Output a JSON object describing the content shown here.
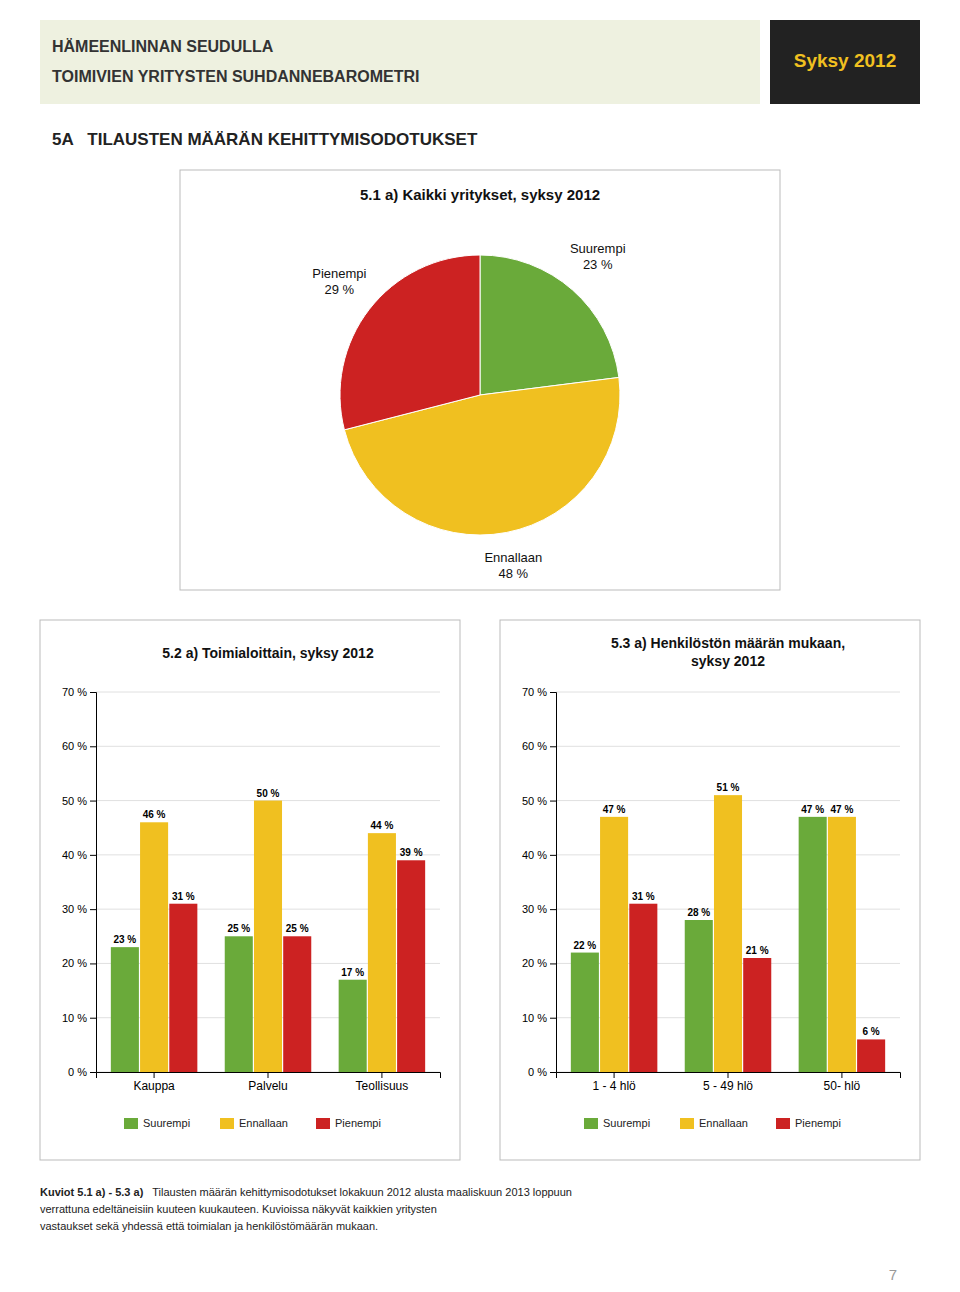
{
  "header": {
    "lines": [
      "HÄMEENLINNAN SEUDULLA",
      "TOIMIVIEN YRITYSTEN SUHDANNEBAROMETRI"
    ],
    "badge": "Syksy 2012"
  },
  "title": "5A   TILAUSTEN MÄÄRÄN KEHITTYMISODOTUKSET",
  "chart_data": [
    {
      "type": "pie",
      "title": "5.1 a) Kaikki yritykset, syksy 2012",
      "categories": [
        "Suurempi",
        "Ennallaan",
        "Pienempi"
      ],
      "values": [
        23,
        48,
        29
      ],
      "value_labels": [
        "23 %",
        "48 %",
        "29 %"
      ],
      "colors": [
        "#6aaa3a",
        "#f0c020",
        "#cc2222"
      ],
      "data_labels": true
    },
    {
      "type": "bar",
      "title": "5.2 a) Toimialoittain, syksy 2012",
      "categories": [
        "Kauppa",
        "Palvelu",
        "Teollisuus"
      ],
      "series": [
        {
          "name": "Suurempi",
          "color": "#6aaa3a",
          "values": [
            23,
            25,
            17
          ],
          "value_labels": [
            "23 %",
            "25 %",
            "17 %"
          ]
        },
        {
          "name": "Ennallaan",
          "color": "#f0c020",
          "values": [
            46,
            50,
            44
          ],
          "value_labels": [
            "46 %",
            "50 %",
            "44 %"
          ]
        },
        {
          "name": "Pienempi",
          "color": "#cc2222",
          "values": [
            31,
            25,
            39
          ],
          "value_labels": [
            "31 %",
            "25 %",
            "39 %"
          ]
        }
      ],
      "ylim": [
        0,
        70
      ],
      "yticks": [
        {
          "value": 0,
          "label": "0 %"
        },
        {
          "value": 10,
          "label": "10 %"
        },
        {
          "value": 20,
          "label": "20 %"
        },
        {
          "value": 30,
          "label": "30 %"
        },
        {
          "value": 40,
          "label": "40 %"
        },
        {
          "value": 50,
          "label": "50 %"
        },
        {
          "value": 60,
          "label": "60 %"
        },
        {
          "value": 70,
          "label": "70 %"
        }
      ],
      "grid": true,
      "legend": "bottom",
      "data_labels": true
    },
    {
      "type": "bar",
      "title": "5.3 a) Henkilöstön määrän mukaan,\nsyksy 2012",
      "categories": [
        "1 - 4 hlö",
        "5 - 49 hlö",
        "50- hlö"
      ],
      "series": [
        {
          "name": "Suurempi",
          "color": "#6aaa3a",
          "values": [
            22,
            28,
            47
          ],
          "value_labels": [
            "22 %",
            "28 %",
            "47 %"
          ]
        },
        {
          "name": "Ennallaan",
          "color": "#f0c020",
          "values": [
            47,
            51,
            47
          ],
          "value_labels": [
            "47 %",
            "51 %",
            "47 %"
          ]
        },
        {
          "name": "Pienempi",
          "color": "#cc2222",
          "values": [
            31,
            21,
            6
          ],
          "value_labels": [
            "31 %",
            "21 %",
            "6 %"
          ]
        }
      ],
      "ylim": [
        0,
        70
      ],
      "yticks": [
        {
          "value": 0,
          "label": "0 %"
        },
        {
          "value": 10,
          "label": "10 %"
        },
        {
          "value": 20,
          "label": "20 %"
        },
        {
          "value": 30,
          "label": "30 %"
        },
        {
          "value": 40,
          "label": "40 %"
        },
        {
          "value": 50,
          "label": "50 %"
        },
        {
          "value": 60,
          "label": "60 %"
        },
        {
          "value": 70,
          "label": "70 %"
        }
      ],
      "grid": true,
      "legend": "bottom",
      "data_labels": true
    }
  ],
  "footer": {
    "label": "Kuviot 5.1 a) - 5.3 a)",
    "lines": [
      "   Tilausten määrän kehittymisodotukset lokakuun 2012 alusta maaliskuun 2013 loppuun",
      "verrattuna edeltäneisiin kuuteen kuukauteen. Kuvioissa näkyvät kaikkien yritysten",
      "vastaukset sekä yhdessä että toimialan ja henkilöstömäärän mukaan."
    ]
  },
  "page_number": "7"
}
